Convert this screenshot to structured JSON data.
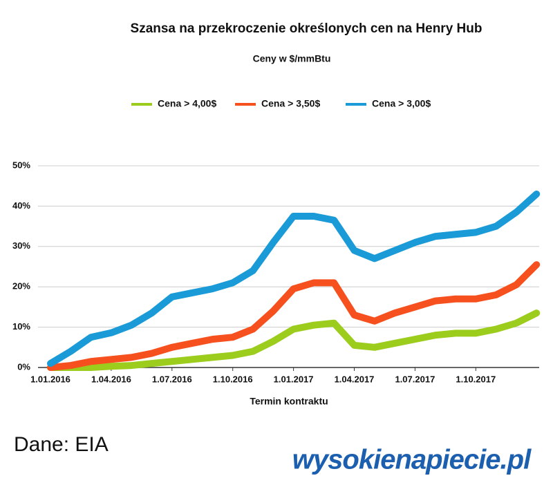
{
  "chart_data": {
    "type": "line",
    "title": "Szansa na przekroczenie określonych cen na Henry Hub",
    "subtitle": "Ceny w $/mmBtu",
    "x_label": "Termin kontraktu",
    "categories": [
      "1.01.2016",
      null,
      null,
      "1.04.2016",
      null,
      null,
      "1.07.2016",
      null,
      null,
      "1.10.2016",
      null,
      null,
      "1.01.2017",
      null,
      null,
      "1.04.2017",
      null,
      null,
      "1.07.2017",
      null,
      null,
      "1.10.2017",
      null,
      null,
      null
    ],
    "series": [
      {
        "name": "Cena > 4,00$",
        "color": "#9ccc1c",
        "values": [
          0,
          0,
          0,
          0.3,
          0.5,
          1,
          1.5,
          2,
          2.5,
          3,
          4,
          6.5,
          9.5,
          10.5,
          11,
          5.5,
          5,
          6,
          7,
          8,
          8.5,
          8.5,
          9.5,
          11,
          13.5
        ]
      },
      {
        "name": "Cena > 3,50$",
        "color": "#f5501e",
        "values": [
          0,
          0.5,
          1.5,
          2,
          2.5,
          3.5,
          5,
          6,
          7,
          7.5,
          9.5,
          14,
          19.5,
          21,
          21,
          13,
          11.5,
          13.5,
          15,
          16.5,
          17,
          17,
          18,
          20.5,
          25.5
        ]
      },
      {
        "name": "Cena > 3,00$",
        "color": "#1a9ad6",
        "values": [
          1,
          4,
          7.5,
          8.6,
          10.5,
          13.5,
          17.5,
          18.5,
          19.5,
          21,
          24,
          31,
          37.5,
          37.5,
          36.5,
          29,
          27,
          29,
          31,
          32.5,
          33,
          33.5,
          35,
          38.5,
          43
        ]
      }
    ],
    "ylim": [
      0,
      50
    ],
    "yticks": [
      {
        "value": 0,
        "label": "0%"
      },
      {
        "value": 10,
        "label": "10%"
      },
      {
        "value": 20,
        "label": "20%"
      },
      {
        "value": 30,
        "label": "30%"
      },
      {
        "value": 40,
        "label": "40%"
      },
      {
        "value": 50,
        "label": "50%"
      }
    ],
    "grid": true,
    "legend": "top"
  },
  "source": "Dane: EIA",
  "logo": "wysokienapiecie.pl"
}
